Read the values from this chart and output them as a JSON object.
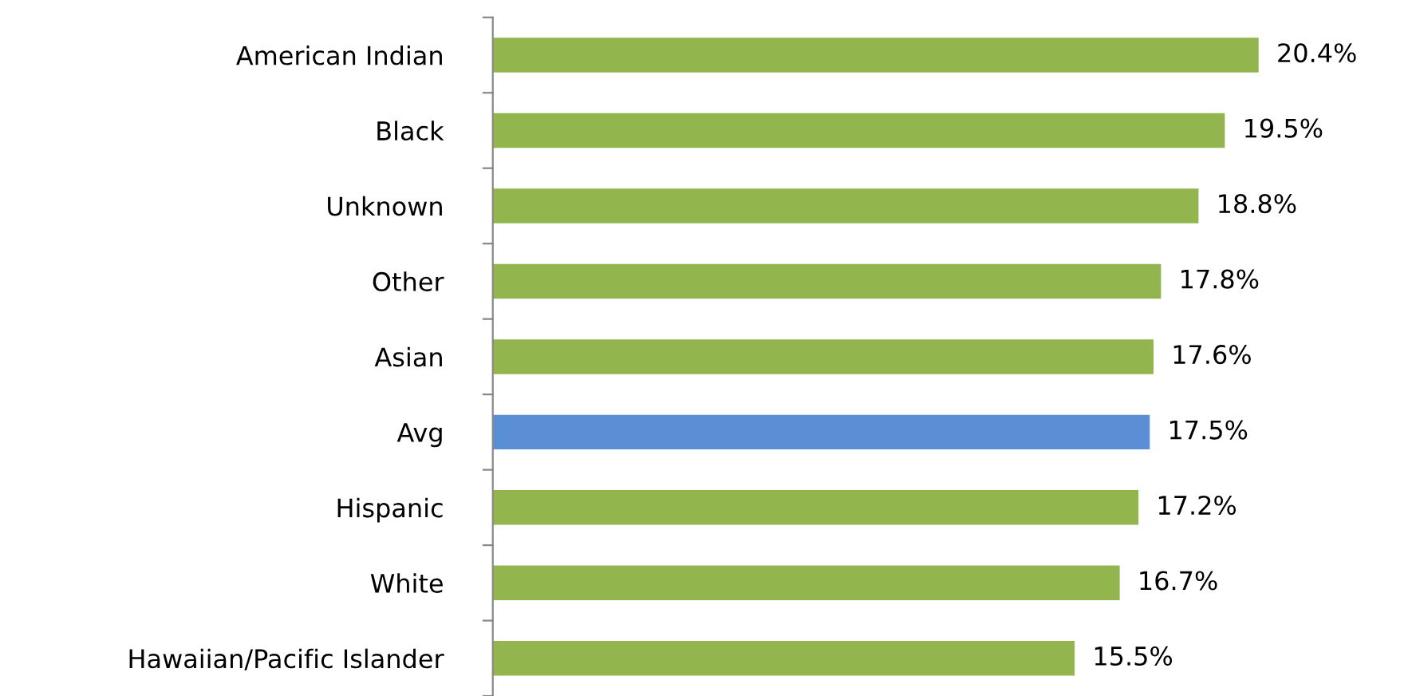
{
  "chart_data": {
    "type": "bar",
    "orientation": "horizontal",
    "categories": [
      "American Indian",
      "Black",
      "Unknown",
      "Other",
      "Asian",
      "Avg",
      "Hispanic",
      "White",
      "Hawaiian/Pacific Islander"
    ],
    "values": [
      20.4,
      19.5,
      18.8,
      17.8,
      17.6,
      17.5,
      17.2,
      16.7,
      15.5
    ],
    "value_labels": [
      "20.4%",
      "19.5%",
      "18.8%",
      "17.8%",
      "17.6%",
      "17.5%",
      "17.2%",
      "16.7%",
      "15.5%"
    ],
    "colors": [
      "#92b64d",
      "#92b64d",
      "#92b64d",
      "#92b64d",
      "#92b64d",
      "#5a8fd6",
      "#92b64d",
      "#92b64d",
      "#92b64d"
    ],
    "grid": false,
    "legend": false
  }
}
